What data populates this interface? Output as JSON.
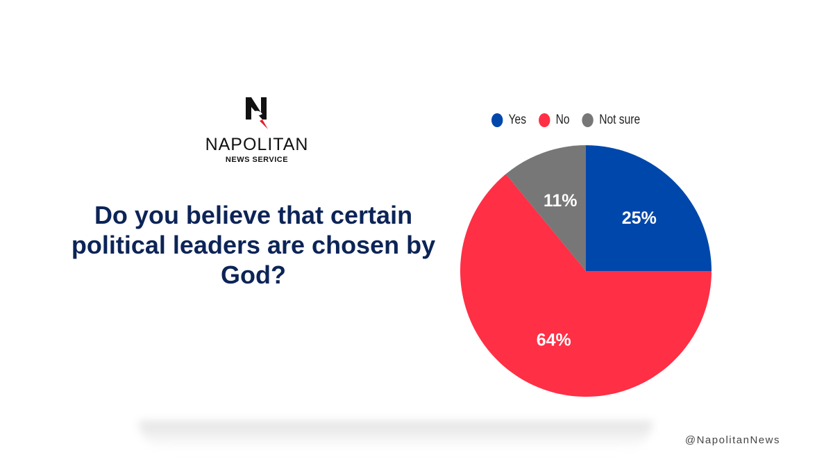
{
  "brand": {
    "name": "NAPOLITAN",
    "subtitle": "NEWS SERVICE",
    "logo_letter": "N"
  },
  "handle": "@NapolitanNews",
  "chart_data": {
    "type": "pie",
    "title": "Do you believe that certain political leaders are chosen by God?",
    "categories": [
      "Yes",
      "No",
      "Not sure"
    ],
    "values": [
      25,
      64,
      11
    ],
    "labels": [
      "25%",
      "64%",
      "11%"
    ],
    "colors": [
      "#0047ab",
      "#ff2f45",
      "#777777"
    ],
    "legend_position": "top"
  }
}
